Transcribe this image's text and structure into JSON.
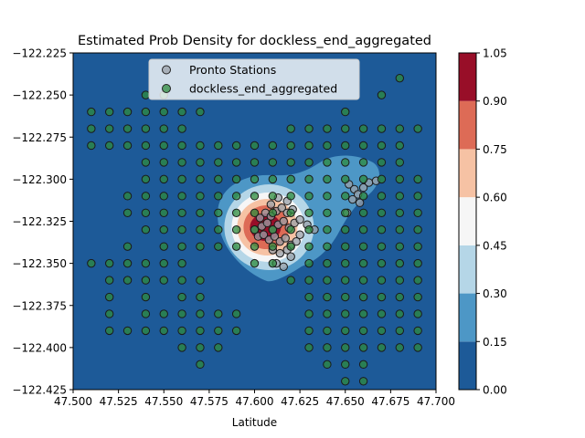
{
  "chart_data": {
    "type": "contour",
    "title": "Estimated Prob Density for dockless_end_aggregated",
    "xlabel": "Latitude",
    "ylabel": "",
    "xlim": [
      47.5,
      47.7
    ],
    "ylim": [
      -122.425,
      -122.225
    ],
    "x_ticks": [
      "47.500",
      "47.525",
      "47.550",
      "47.575",
      "47.600",
      "47.625",
      "47.650",
      "47.675",
      "47.700"
    ],
    "y_ticks": [
      "−122.225",
      "−122.250",
      "−122.275",
      "−122.300",
      "−122.325",
      "−122.350",
      "−122.375",
      "−122.400",
      "−122.425"
    ],
    "colorbar": {
      "levels": [
        0.0,
        0.15,
        0.3,
        0.45,
        0.6,
        0.75,
        0.9,
        1.05
      ],
      "tick_labels": [
        "0.00",
        "0.15",
        "0.30",
        "0.45",
        "0.60",
        "0.75",
        "0.90",
        "1.05"
      ],
      "colors": [
        "#1d5a98",
        "#4d97c6",
        "#b5d6e7",
        "#f6f6f6",
        "#f6c2a4",
        "#dd6b56",
        "#980e28"
      ]
    },
    "density_peak": {
      "x": 47.607,
      "y": -122.328
    },
    "legend": {
      "placement": "top-center",
      "entries": [
        "Pronto Stations",
        "dockless_end_aggregated"
      ]
    },
    "series": [
      {
        "name": "Pronto Stations",
        "color": "#9aa0a8",
        "points": [
          [
            47.603,
            -122.323
          ],
          [
            47.606,
            -122.32
          ],
          [
            47.609,
            -122.322
          ],
          [
            47.612,
            -122.319
          ],
          [
            47.615,
            -122.317
          ],
          [
            47.618,
            -122.32
          ],
          [
            47.621,
            -122.318
          ],
          [
            47.604,
            -122.328
          ],
          [
            47.607,
            -122.326
          ],
          [
            47.61,
            -122.33
          ],
          [
            47.613,
            -122.327
          ],
          [
            47.616,
            -122.325
          ],
          [
            47.619,
            -122.329
          ],
          [
            47.622,
            -122.326
          ],
          [
            47.625,
            -122.324
          ],
          [
            47.602,
            -122.334
          ],
          [
            47.605,
            -122.333
          ],
          [
            47.608,
            -122.336
          ],
          [
            47.611,
            -122.334
          ],
          [
            47.614,
            -122.337
          ],
          [
            47.617,
            -122.335
          ],
          [
            47.62,
            -122.339
          ],
          [
            47.623,
            -122.337
          ],
          [
            47.61,
            -122.342
          ],
          [
            47.614,
            -122.344
          ],
          [
            47.618,
            -122.342
          ],
          [
            47.612,
            -122.35
          ],
          [
            47.616,
            -122.352
          ],
          [
            47.62,
            -122.346
          ],
          [
            47.609,
            -122.315
          ],
          [
            47.613,
            -122.311
          ],
          [
            47.618,
            -122.313
          ],
          [
            47.629,
            -122.327
          ],
          [
            47.633,
            -122.33
          ],
          [
            47.652,
            -122.303
          ],
          [
            47.655,
            -122.306
          ],
          [
            47.657,
            -122.309
          ],
          [
            47.66,
            -122.305
          ],
          [
            47.663,
            -122.302
          ],
          [
            47.654,
            -122.312
          ],
          [
            47.658,
            -122.314
          ],
          [
            47.651,
            -122.32
          ],
          [
            47.667,
            -122.301
          ],
          [
            47.6,
            -122.33
          ],
          [
            47.625,
            -122.333
          ]
        ]
      },
      {
        "name": "dockless_end_aggregated",
        "color": "#2e8b3e",
        "points": [
          [
            47.51,
            -122.26
          ],
          [
            47.52,
            -122.26
          ],
          [
            47.53,
            -122.26
          ],
          [
            47.54,
            -122.26
          ],
          [
            47.55,
            -122.26
          ],
          [
            47.56,
            -122.26
          ],
          [
            47.57,
            -122.26
          ],
          [
            47.65,
            -122.26
          ],
          [
            47.54,
            -122.25
          ],
          [
            47.55,
            -122.25
          ],
          [
            47.67,
            -122.25
          ],
          [
            47.68,
            -122.24
          ],
          [
            47.51,
            -122.27
          ],
          [
            47.52,
            -122.27
          ],
          [
            47.53,
            -122.27
          ],
          [
            47.54,
            -122.27
          ],
          [
            47.55,
            -122.27
          ],
          [
            47.56,
            -122.27
          ],
          [
            47.62,
            -122.27
          ],
          [
            47.63,
            -122.27
          ],
          [
            47.64,
            -122.27
          ],
          [
            47.65,
            -122.27
          ],
          [
            47.66,
            -122.27
          ],
          [
            47.67,
            -122.27
          ],
          [
            47.68,
            -122.27
          ],
          [
            47.69,
            -122.27
          ],
          [
            47.51,
            -122.28
          ],
          [
            47.52,
            -122.28
          ],
          [
            47.53,
            -122.28
          ],
          [
            47.54,
            -122.28
          ],
          [
            47.55,
            -122.28
          ],
          [
            47.56,
            -122.28
          ],
          [
            47.57,
            -122.28
          ],
          [
            47.58,
            -122.28
          ],
          [
            47.59,
            -122.28
          ],
          [
            47.6,
            -122.28
          ],
          [
            47.61,
            -122.28
          ],
          [
            47.62,
            -122.28
          ],
          [
            47.63,
            -122.28
          ],
          [
            47.64,
            -122.28
          ],
          [
            47.65,
            -122.28
          ],
          [
            47.66,
            -122.28
          ],
          [
            47.67,
            -122.28
          ],
          [
            47.68,
            -122.28
          ],
          [
            47.54,
            -122.29
          ],
          [
            47.55,
            -122.29
          ],
          [
            47.56,
            -122.29
          ],
          [
            47.57,
            -122.29
          ],
          [
            47.58,
            -122.29
          ],
          [
            47.59,
            -122.29
          ],
          [
            47.6,
            -122.29
          ],
          [
            47.61,
            -122.29
          ],
          [
            47.62,
            -122.29
          ],
          [
            47.63,
            -122.29
          ],
          [
            47.64,
            -122.29
          ],
          [
            47.65,
            -122.29
          ],
          [
            47.66,
            -122.29
          ],
          [
            47.67,
            -122.29
          ],
          [
            47.68,
            -122.29
          ],
          [
            47.54,
            -122.3
          ],
          [
            47.55,
            -122.3
          ],
          [
            47.56,
            -122.3
          ],
          [
            47.57,
            -122.3
          ],
          [
            47.58,
            -122.3
          ],
          [
            47.59,
            -122.3
          ],
          [
            47.6,
            -122.3
          ],
          [
            47.61,
            -122.3
          ],
          [
            47.62,
            -122.3
          ],
          [
            47.63,
            -122.3
          ],
          [
            47.64,
            -122.3
          ],
          [
            47.65,
            -122.3
          ],
          [
            47.66,
            -122.3
          ],
          [
            47.67,
            -122.3
          ],
          [
            47.68,
            -122.3
          ],
          [
            47.69,
            -122.3
          ],
          [
            47.53,
            -122.31
          ],
          [
            47.54,
            -122.31
          ],
          [
            47.55,
            -122.31
          ],
          [
            47.56,
            -122.31
          ],
          [
            47.57,
            -122.31
          ],
          [
            47.58,
            -122.31
          ],
          [
            47.59,
            -122.31
          ],
          [
            47.6,
            -122.31
          ],
          [
            47.61,
            -122.31
          ],
          [
            47.62,
            -122.31
          ],
          [
            47.63,
            -122.31
          ],
          [
            47.64,
            -122.31
          ],
          [
            47.65,
            -122.31
          ],
          [
            47.66,
            -122.31
          ],
          [
            47.67,
            -122.31
          ],
          [
            47.68,
            -122.31
          ],
          [
            47.69,
            -122.31
          ],
          [
            47.53,
            -122.32
          ],
          [
            47.54,
            -122.32
          ],
          [
            47.55,
            -122.32
          ],
          [
            47.56,
            -122.32
          ],
          [
            47.57,
            -122.32
          ],
          [
            47.58,
            -122.32
          ],
          [
            47.59,
            -122.32
          ],
          [
            47.6,
            -122.32
          ],
          [
            47.61,
            -122.32
          ],
          [
            47.62,
            -122.32
          ],
          [
            47.63,
            -122.32
          ],
          [
            47.64,
            -122.32
          ],
          [
            47.65,
            -122.32
          ],
          [
            47.66,
            -122.32
          ],
          [
            47.67,
            -122.32
          ],
          [
            47.68,
            -122.32
          ],
          [
            47.69,
            -122.32
          ],
          [
            47.54,
            -122.33
          ],
          [
            47.55,
            -122.33
          ],
          [
            47.56,
            -122.33
          ],
          [
            47.57,
            -122.33
          ],
          [
            47.58,
            -122.33
          ],
          [
            47.59,
            -122.33
          ],
          [
            47.6,
            -122.33
          ],
          [
            47.61,
            -122.33
          ],
          [
            47.62,
            -122.33
          ],
          [
            47.63,
            -122.33
          ],
          [
            47.64,
            -122.33
          ],
          [
            47.65,
            -122.33
          ],
          [
            47.66,
            -122.33
          ],
          [
            47.67,
            -122.33
          ],
          [
            47.68,
            -122.33
          ],
          [
            47.69,
            -122.33
          ],
          [
            47.53,
            -122.34
          ],
          [
            47.55,
            -122.34
          ],
          [
            47.56,
            -122.34
          ],
          [
            47.57,
            -122.34
          ],
          [
            47.58,
            -122.34
          ],
          [
            47.59,
            -122.34
          ],
          [
            47.6,
            -122.34
          ],
          [
            47.61,
            -122.34
          ],
          [
            47.62,
            -122.34
          ],
          [
            47.63,
            -122.34
          ],
          [
            47.64,
            -122.34
          ],
          [
            47.65,
            -122.34
          ],
          [
            47.66,
            -122.34
          ],
          [
            47.67,
            -122.34
          ],
          [
            47.68,
            -122.34
          ],
          [
            47.69,
            -122.34
          ],
          [
            47.51,
            -122.35
          ],
          [
            47.52,
            -122.35
          ],
          [
            47.53,
            -122.35
          ],
          [
            47.54,
            -122.35
          ],
          [
            47.55,
            -122.35
          ],
          [
            47.56,
            -122.35
          ],
          [
            47.6,
            -122.35
          ],
          [
            47.61,
            -122.35
          ],
          [
            47.63,
            -122.35
          ],
          [
            47.64,
            -122.35
          ],
          [
            47.65,
            -122.35
          ],
          [
            47.66,
            -122.35
          ],
          [
            47.67,
            -122.35
          ],
          [
            47.68,
            -122.35
          ],
          [
            47.69,
            -122.35
          ],
          [
            47.52,
            -122.36
          ],
          [
            47.53,
            -122.36
          ],
          [
            47.54,
            -122.36
          ],
          [
            47.55,
            -122.36
          ],
          [
            47.56,
            -122.36
          ],
          [
            47.57,
            -122.36
          ],
          [
            47.62,
            -122.36
          ],
          [
            47.63,
            -122.36
          ],
          [
            47.64,
            -122.36
          ],
          [
            47.65,
            -122.36
          ],
          [
            47.66,
            -122.36
          ],
          [
            47.67,
            -122.36
          ],
          [
            47.68,
            -122.36
          ],
          [
            47.69,
            -122.36
          ],
          [
            47.52,
            -122.37
          ],
          [
            47.54,
            -122.37
          ],
          [
            47.56,
            -122.37
          ],
          [
            47.57,
            -122.37
          ],
          [
            47.63,
            -122.37
          ],
          [
            47.64,
            -122.37
          ],
          [
            47.65,
            -122.37
          ],
          [
            47.66,
            -122.37
          ],
          [
            47.67,
            -122.37
          ],
          [
            47.68,
            -122.37
          ],
          [
            47.69,
            -122.37
          ],
          [
            47.52,
            -122.38
          ],
          [
            47.54,
            -122.38
          ],
          [
            47.55,
            -122.38
          ],
          [
            47.56,
            -122.38
          ],
          [
            47.57,
            -122.38
          ],
          [
            47.58,
            -122.38
          ],
          [
            47.59,
            -122.38
          ],
          [
            47.63,
            -122.38
          ],
          [
            47.64,
            -122.38
          ],
          [
            47.65,
            -122.38
          ],
          [
            47.66,
            -122.38
          ],
          [
            47.67,
            -122.38
          ],
          [
            47.68,
            -122.38
          ],
          [
            47.69,
            -122.38
          ],
          [
            47.52,
            -122.39
          ],
          [
            47.53,
            -122.39
          ],
          [
            47.54,
            -122.39
          ],
          [
            47.55,
            -122.39
          ],
          [
            47.56,
            -122.39
          ],
          [
            47.57,
            -122.39
          ],
          [
            47.58,
            -122.39
          ],
          [
            47.59,
            -122.39
          ],
          [
            47.63,
            -122.39
          ],
          [
            47.64,
            -122.39
          ],
          [
            47.65,
            -122.39
          ],
          [
            47.66,
            -122.39
          ],
          [
            47.67,
            -122.39
          ],
          [
            47.68,
            -122.39
          ],
          [
            47.69,
            -122.39
          ],
          [
            47.56,
            -122.4
          ],
          [
            47.57,
            -122.4
          ],
          [
            47.58,
            -122.4
          ],
          [
            47.63,
            -122.4
          ],
          [
            47.64,
            -122.4
          ],
          [
            47.65,
            -122.4
          ],
          [
            47.66,
            -122.4
          ],
          [
            47.67,
            -122.4
          ],
          [
            47.68,
            -122.4
          ],
          [
            47.69,
            -122.4
          ],
          [
            47.57,
            -122.41
          ],
          [
            47.64,
            -122.41
          ],
          [
            47.65,
            -122.41
          ],
          [
            47.66,
            -122.41
          ],
          [
            47.65,
            -122.42
          ],
          [
            47.66,
            -122.42
          ]
        ]
      }
    ]
  }
}
